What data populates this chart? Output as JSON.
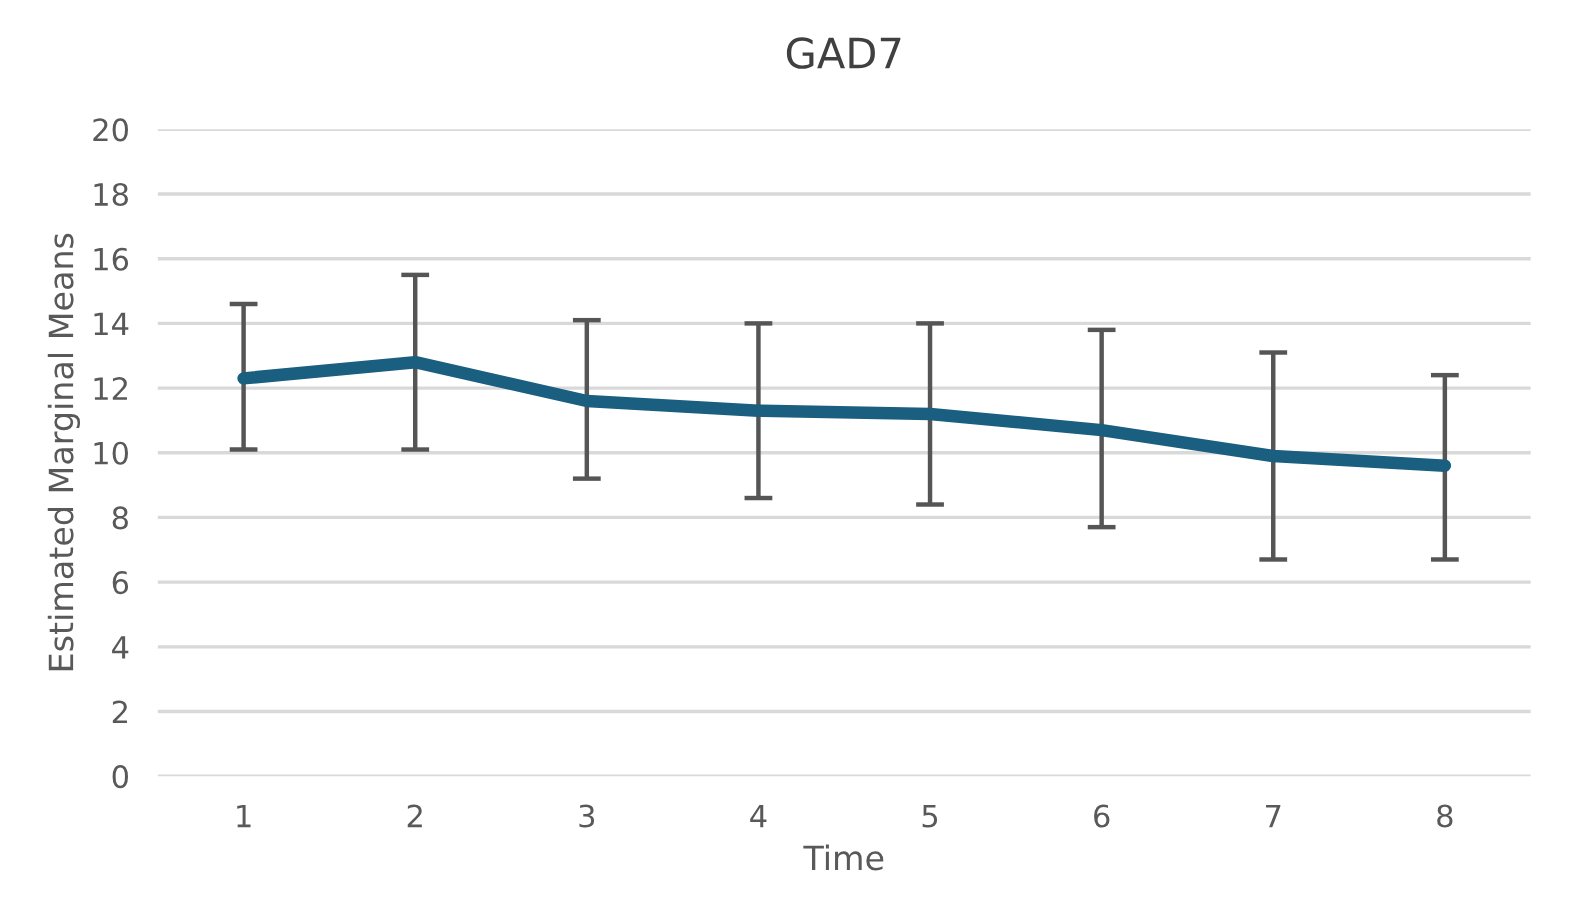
{
  "chart_data": {
    "type": "line",
    "title": "GAD7",
    "xlabel": "Time",
    "ylabel": "Estimated Marginal Means",
    "categories": [
      "1",
      "2",
      "3",
      "4",
      "5",
      "6",
      "7",
      "8"
    ],
    "series": [
      {
        "color": "#1a5e80",
        "values": [
          12.3,
          12.8,
          11.6,
          11.3,
          11.2,
          10.7,
          9.9,
          9.6
        ],
        "errors": [
          [
            10.1,
            14.6
          ],
          [
            10.1,
            15.5
          ],
          [
            9.2,
            14.1
          ],
          [
            8.6,
            14.0
          ],
          [
            8.4,
            14.0
          ],
          [
            7.7,
            13.8
          ],
          [
            6.7,
            13.1
          ],
          [
            6.7,
            12.4
          ]
        ]
      }
    ],
    "ylim": [
      0,
      20
    ],
    "yticks": [
      0,
      2,
      4,
      6,
      8,
      10,
      12,
      14,
      16,
      18,
      20
    ],
    "grid": "y",
    "legend": false,
    "marker": "none",
    "line_style": "solid"
  }
}
